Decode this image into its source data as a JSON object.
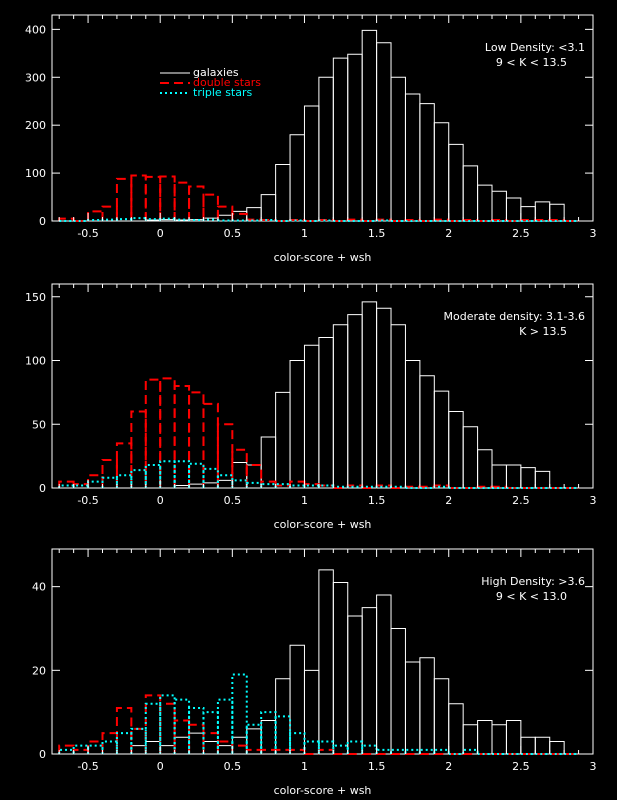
{
  "colors": {
    "background": "#000000",
    "galaxies": "#ffffff",
    "double": "#ff0000",
    "triple": "#00ffff",
    "axes": "#ffffff"
  },
  "legend": {
    "galaxies": "galaxies",
    "double": "double stars",
    "triple": "triple stars"
  },
  "chart_data": [
    {
      "type": "bar",
      "title": "",
      "annotation": [
        "Low Density: <3.1",
        "9 < K < 13.5"
      ],
      "xlabel": "color-score + wsh",
      "ylabel": "",
      "xlim": [
        -0.75,
        3.0
      ],
      "ylim": [
        0,
        430
      ],
      "xticks": [
        "-0.5",
        "0",
        "0.5",
        "1",
        "1.5",
        "2",
        "2.5",
        "3"
      ],
      "yticks": [
        "0",
        "100",
        "200",
        "300",
        "400"
      ],
      "bin_width": 0.1,
      "bin_start": -0.7,
      "legend_location": "upper-left",
      "series": [
        {
          "name": "galaxies",
          "style": "solid",
          "values": [
            0,
            0,
            0,
            0,
            0,
            0,
            2,
            3,
            2,
            3,
            6,
            12,
            20,
            28,
            55,
            118,
            180,
            240,
            300,
            340,
            348,
            398,
            372,
            300,
            265,
            245,
            205,
            160,
            115,
            75,
            62,
            48,
            30,
            40,
            35,
            0
          ]
        },
        {
          "name": "double stars",
          "style": "dashed",
          "values": [
            5,
            0,
            20,
            30,
            88,
            95,
            92,
            93,
            80,
            72,
            55,
            30,
            15,
            3,
            2,
            0,
            2,
            0,
            2,
            0,
            3,
            0,
            3,
            0,
            2,
            0,
            3,
            0,
            2,
            0,
            2,
            0,
            2,
            2,
            2,
            0
          ]
        },
        {
          "name": "triple stars",
          "style": "dotted",
          "values": [
            0,
            0,
            2,
            3,
            4,
            6,
            4,
            5,
            3,
            2,
            3,
            1,
            1,
            1,
            2,
            0,
            1,
            0,
            1,
            0,
            0,
            0,
            1,
            0,
            0,
            0,
            0,
            0,
            0,
            0,
            0,
            0,
            0,
            0,
            0,
            0
          ]
        }
      ]
    },
    {
      "type": "bar",
      "title": "",
      "annotation": [
        "Moderate density: 3.1-3.6",
        "K > 13.5"
      ],
      "xlabel": "color-score + wsh",
      "ylabel": "",
      "xlim": [
        -0.75,
        3.0
      ],
      "ylim": [
        0,
        160
      ],
      "xticks": [
        "-0.5",
        "0",
        "0.5",
        "1",
        "1.5",
        "2",
        "2.5",
        "3"
      ],
      "yticks": [
        "0",
        "50",
        "100",
        "150"
      ],
      "bin_width": 0.1,
      "bin_start": -0.7,
      "series": [
        {
          "name": "galaxies",
          "values": [
            0,
            0,
            0,
            0,
            0,
            0,
            0,
            0,
            2,
            3,
            4,
            6,
            20,
            18,
            40,
            75,
            100,
            112,
            118,
            128,
            136,
            146,
            141,
            128,
            100,
            88,
            76,
            60,
            48,
            30,
            18,
            18,
            16,
            13,
            0,
            0
          ]
        },
        {
          "name": "double stars",
          "values": [
            5,
            3,
            10,
            22,
            35,
            60,
            85,
            86,
            80,
            75,
            66,
            50,
            30,
            18,
            5,
            2,
            5,
            3,
            2,
            0,
            2,
            0,
            2,
            0,
            1,
            1,
            2,
            0,
            0,
            1,
            1,
            0,
            0,
            0,
            0,
            0
          ]
        },
        {
          "name": "triple stars",
          "values": [
            2,
            2,
            5,
            8,
            10,
            14,
            18,
            21,
            21,
            19,
            15,
            10,
            6,
            4,
            3,
            3,
            2,
            2,
            2,
            1,
            1,
            1,
            1,
            1,
            0,
            0,
            1,
            0,
            0,
            0,
            0,
            0,
            0,
            0,
            0,
            0
          ]
        }
      ]
    },
    {
      "type": "bar",
      "title": "",
      "annotation": [
        "High Density: >3.6",
        "9 < K < 13.0"
      ],
      "xlabel": "color-score + wsh",
      "ylabel": "",
      "xlim": [
        -0.75,
        3.0
      ],
      "ylim": [
        0,
        49
      ],
      "xticks": [
        "-0.5",
        "0",
        "0.5",
        "1",
        "1.5",
        "2",
        "2.5",
        "3"
      ],
      "yticks": [
        "0",
        "20",
        "40"
      ],
      "bin_width": 0.1,
      "bin_start": -0.7,
      "series": [
        {
          "name": "galaxies",
          "values": [
            0,
            0,
            0,
            0,
            0,
            2,
            3,
            2,
            4,
            5,
            3,
            2,
            4,
            6,
            8,
            18,
            26,
            20,
            44,
            41,
            33,
            35,
            38,
            30,
            22,
            23,
            18,
            12,
            7,
            8,
            7,
            8,
            4,
            4,
            3,
            0
          ]
        },
        {
          "name": "double stars",
          "values": [
            2,
            1,
            3,
            5,
            11,
            6,
            14,
            12,
            8,
            7,
            5,
            3,
            2,
            1,
            1,
            1,
            1,
            0,
            1,
            0,
            0,
            0,
            0,
            0,
            0,
            0,
            0,
            0,
            0,
            0,
            0,
            0,
            0,
            0,
            0,
            0
          ]
        },
        {
          "name": "triple stars",
          "values": [
            1,
            2,
            2,
            3,
            5,
            6,
            12,
            14,
            13,
            11,
            10,
            13,
            19,
            7,
            10,
            9,
            5,
            3,
            3,
            2,
            3,
            2,
            1,
            1,
            1,
            1,
            1,
            0,
            1,
            0,
            0,
            0,
            0,
            0,
            0,
            0
          ]
        }
      ]
    }
  ]
}
